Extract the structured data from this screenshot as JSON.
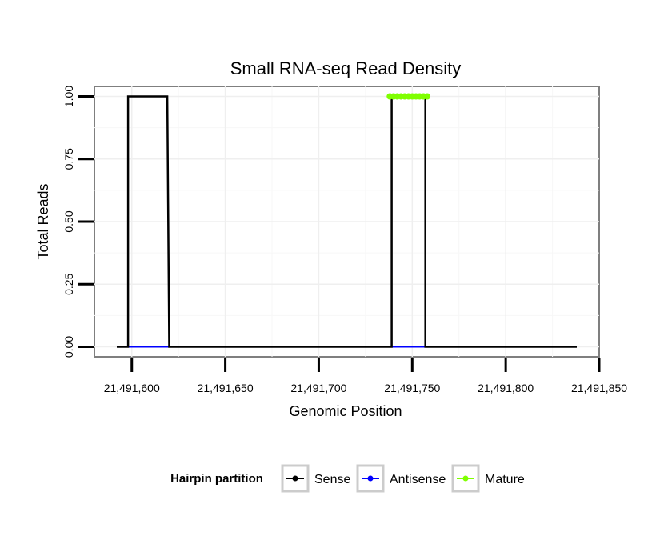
{
  "chart_data": {
    "type": "line",
    "title": "Small RNA-seq Read Density",
    "xlabel": "Genomic Position",
    "ylabel": "Total Reads",
    "xlim": [
      21491580,
      21491850
    ],
    "ylim": [
      -0.04,
      1.04
    ],
    "x_ticks": [
      21491600,
      21491650,
      21491700,
      21491750,
      21491800,
      21491850
    ],
    "x_tick_labels": [
      "21,491,600",
      "21,491,650",
      "21,491,700",
      "21,491,750",
      "21,491,800",
      "21,491,850"
    ],
    "y_ticks": [
      0,
      0.25,
      0.5,
      0.75,
      1.0
    ],
    "y_tick_labels": [
      "0.00",
      "0.25",
      "0.50",
      "0.75",
      "1.00"
    ],
    "grid": true,
    "legend": {
      "title": "Hairpin partition",
      "position": "bottom",
      "entries": [
        "Sense",
        "Antisense",
        "Mature"
      ]
    },
    "series": [
      {
        "name": "Sense",
        "color": "#000000",
        "x": [
          21491592,
          21491598,
          21491598,
          21491619,
          21491620,
          21491739,
          21491739,
          21491757,
          21491757,
          21491838
        ],
        "y": [
          0,
          0,
          1,
          1,
          0,
          0,
          1,
          1,
          0,
          0
        ]
      },
      {
        "name": "Antisense",
        "color": "#0000ff",
        "x": [
          21491598,
          21491620
        ],
        "y": [
          0,
          0
        ],
        "x2": [
          21491739,
          21491757
        ],
        "y2": [
          0,
          0
        ]
      },
      {
        "name": "Mature",
        "color": "#7fff00",
        "x": [
          21491738,
          21491740,
          21491742,
          21491744,
          21491746,
          21491748,
          21491750,
          21491752,
          21491754,
          21491756,
          21491758
        ],
        "y": [
          1,
          1,
          1,
          1,
          1,
          1,
          1,
          1,
          1,
          1,
          1
        ]
      }
    ]
  }
}
